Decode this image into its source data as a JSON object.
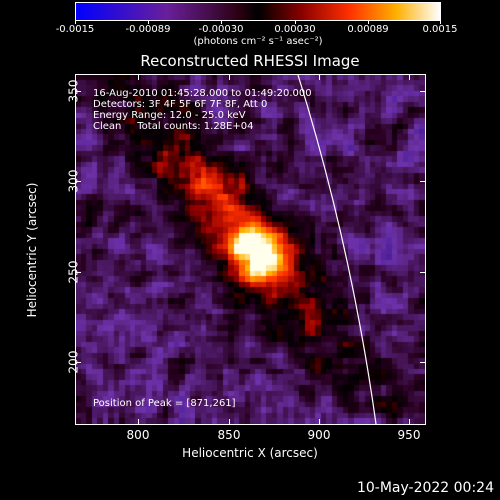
{
  "colorbar": {
    "ticks": [
      "-0.0015",
      "-0.00089",
      "-0.00030",
      "0.00030",
      "0.00089",
      "0.0015"
    ],
    "units": "(photons cm⁻² s⁻¹ asec⁻²)"
  },
  "title": "Reconstructed RHESSI Image",
  "info": {
    "time": "16-Aug-2010 01:45:28.000 to 01:49:20.000",
    "detectors": "Detectors: 3F 4F 5F 6F 7F 8F, Att 0",
    "energy": "Energy Range: 12.0 - 25.0 keV",
    "clean": "Clean     Total counts: 1.28E+04",
    "peak": "Position of Peak = [871,261]"
  },
  "axes": {
    "xlabel": "Heliocentric X (arcsec)",
    "ylabel": "Heliocentric Y (arcsec)",
    "xticks": [
      "800",
      "850",
      "900",
      "950"
    ],
    "yticks": [
      "350",
      "300",
      "250",
      "200"
    ]
  },
  "timestamp": "10-May-2022 00:24"
}
